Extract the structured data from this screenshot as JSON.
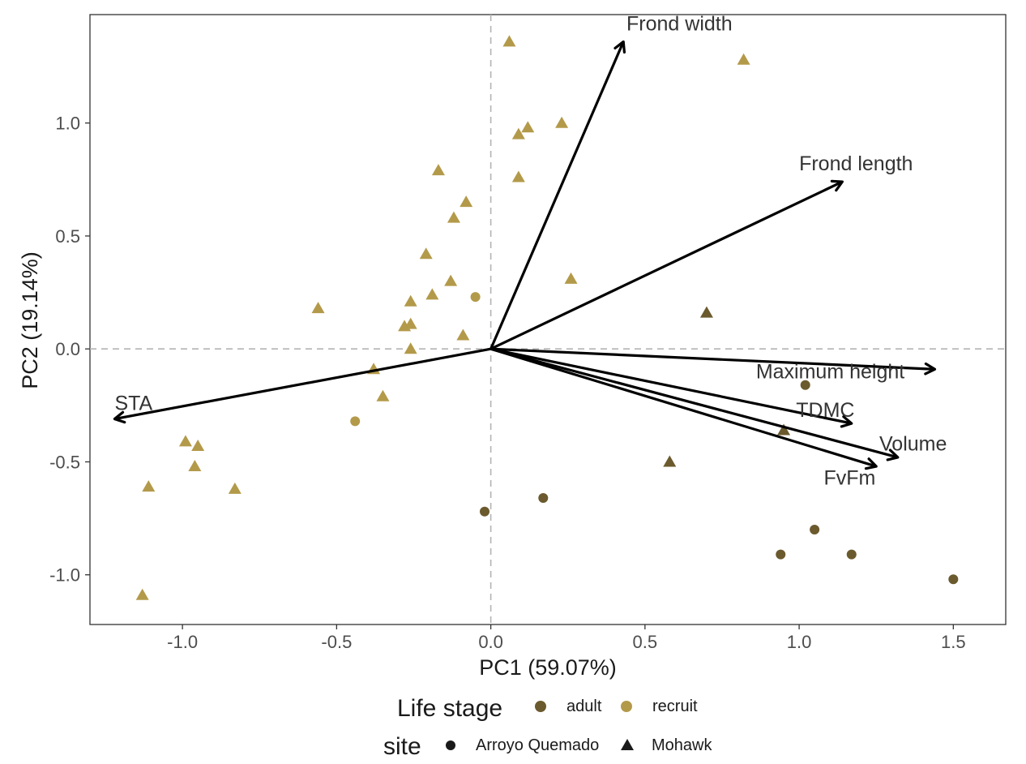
{
  "chart_data": {
    "type": "scatter",
    "subtype": "pca-biplot",
    "xlabel": "PC1 (59.07%)",
    "ylabel": "PC2 (19.14%)",
    "xlim": [
      -1.3,
      1.67
    ],
    "ylim": [
      -1.22,
      1.48
    ],
    "x_ticks": [
      {
        "value": -1.0,
        "label": "-1.0"
      },
      {
        "value": -0.5,
        "label": "-0.5"
      },
      {
        "value": 0.0,
        "label": "0.0"
      },
      {
        "value": 0.5,
        "label": "0.5"
      },
      {
        "value": 1.0,
        "label": "1.0"
      },
      {
        "value": 1.5,
        "label": "1.5"
      }
    ],
    "y_ticks": [
      {
        "value": 1.0,
        "label": "1.0"
      },
      {
        "value": 0.5,
        "label": "0.5"
      },
      {
        "value": 0.0,
        "label": "0.0"
      },
      {
        "value": -0.5,
        "label": "-0.5"
      },
      {
        "value": -1.0,
        "label": "-1.0"
      }
    ],
    "grid": false,
    "reference_lines": {
      "x": 0,
      "y": 0,
      "style": "dashed"
    },
    "colors": {
      "adult": "#6b5a2e",
      "recruit": "#b39a4a",
      "arrow": "#000000",
      "reference": "#b3b3b3"
    },
    "loadings": [
      {
        "name": "Frond width",
        "x": 0.43,
        "y": 1.36,
        "label_x": 0.44,
        "label_y": 1.41
      },
      {
        "name": "Frond length",
        "x": 1.14,
        "y": 0.74,
        "label_x": 1.0,
        "label_y": 0.79
      },
      {
        "name": "Maximum height",
        "x": 1.44,
        "y": -0.09,
        "label_x": 0.86,
        "label_y": -0.13
      },
      {
        "name": "TDMC",
        "x": 1.17,
        "y": -0.33,
        "label_x": 0.99,
        "label_y": -0.3
      },
      {
        "name": "Volume",
        "x": 1.32,
        "y": -0.48,
        "label_x": 1.26,
        "label_y": -0.45
      },
      {
        "name": "FvFm",
        "x": 1.25,
        "y": -0.52,
        "label_x": 1.08,
        "label_y": -0.6
      },
      {
        "name": "STA",
        "x": -1.22,
        "y": -0.31,
        "label_x": -1.22,
        "label_y": -0.27
      }
    ],
    "points": [
      {
        "x": 0.06,
        "y": 1.36,
        "life_stage": "recruit",
        "site": "Mohawk"
      },
      {
        "x": 0.82,
        "y": 1.28,
        "life_stage": "recruit",
        "site": "Mohawk"
      },
      {
        "x": 0.23,
        "y": 1.0,
        "life_stage": "recruit",
        "site": "Mohawk"
      },
      {
        "x": 0.12,
        "y": 0.98,
        "life_stage": "recruit",
        "site": "Mohawk"
      },
      {
        "x": 0.09,
        "y": 0.95,
        "life_stage": "recruit",
        "site": "Mohawk"
      },
      {
        "x": -0.17,
        "y": 0.79,
        "life_stage": "recruit",
        "site": "Mohawk"
      },
      {
        "x": 0.09,
        "y": 0.76,
        "life_stage": "recruit",
        "site": "Mohawk"
      },
      {
        "x": -0.08,
        "y": 0.65,
        "life_stage": "recruit",
        "site": "Mohawk"
      },
      {
        "x": -0.12,
        "y": 0.58,
        "life_stage": "recruit",
        "site": "Mohawk"
      },
      {
        "x": -0.21,
        "y": 0.42,
        "life_stage": "recruit",
        "site": "Mohawk"
      },
      {
        "x": 0.26,
        "y": 0.31,
        "life_stage": "recruit",
        "site": "Mohawk"
      },
      {
        "x": -0.13,
        "y": 0.3,
        "life_stage": "recruit",
        "site": "Mohawk"
      },
      {
        "x": -0.19,
        "y": 0.24,
        "life_stage": "recruit",
        "site": "Mohawk"
      },
      {
        "x": -0.26,
        "y": 0.21,
        "life_stage": "recruit",
        "site": "Mohawk"
      },
      {
        "x": -0.56,
        "y": 0.18,
        "life_stage": "recruit",
        "site": "Mohawk"
      },
      {
        "x": -0.26,
        "y": 0.11,
        "life_stage": "recruit",
        "site": "Mohawk"
      },
      {
        "x": -0.28,
        "y": 0.1,
        "life_stage": "recruit",
        "site": "Mohawk"
      },
      {
        "x": -0.09,
        "y": 0.06,
        "life_stage": "recruit",
        "site": "Mohawk"
      },
      {
        "x": -0.26,
        "y": 0.0,
        "life_stage": "recruit",
        "site": "Mohawk"
      },
      {
        "x": -0.38,
        "y": -0.09,
        "life_stage": "recruit",
        "site": "Mohawk"
      },
      {
        "x": -0.35,
        "y": -0.21,
        "life_stage": "recruit",
        "site": "Mohawk"
      },
      {
        "x": -0.99,
        "y": -0.41,
        "life_stage": "recruit",
        "site": "Mohawk"
      },
      {
        "x": -0.95,
        "y": -0.43,
        "life_stage": "recruit",
        "site": "Mohawk"
      },
      {
        "x": -0.96,
        "y": -0.52,
        "life_stage": "recruit",
        "site": "Mohawk"
      },
      {
        "x": -1.11,
        "y": -0.61,
        "life_stage": "recruit",
        "site": "Mohawk"
      },
      {
        "x": -0.83,
        "y": -0.62,
        "life_stage": "recruit",
        "site": "Mohawk"
      },
      {
        "x": -1.13,
        "y": -1.09,
        "life_stage": "recruit",
        "site": "Mohawk"
      },
      {
        "x": -0.05,
        "y": 0.23,
        "life_stage": "recruit",
        "site": "Arroyo Quemado"
      },
      {
        "x": -0.44,
        "y": -0.32,
        "life_stage": "recruit",
        "site": "Arroyo Quemado"
      },
      {
        "x": 0.7,
        "y": 0.16,
        "life_stage": "adult",
        "site": "Mohawk"
      },
      {
        "x": 0.95,
        "y": -0.36,
        "life_stage": "adult",
        "site": "Mohawk"
      },
      {
        "x": 0.58,
        "y": -0.5,
        "life_stage": "adult",
        "site": "Mohawk"
      },
      {
        "x": 1.02,
        "y": -0.16,
        "life_stage": "adult",
        "site": "Arroyo Quemado"
      },
      {
        "x": 0.17,
        "y": -0.66,
        "life_stage": "adult",
        "site": "Arroyo Quemado"
      },
      {
        "x": -0.02,
        "y": -0.72,
        "life_stage": "adult",
        "site": "Arroyo Quemado"
      },
      {
        "x": 1.05,
        "y": -0.8,
        "life_stage": "adult",
        "site": "Arroyo Quemado"
      },
      {
        "x": 0.94,
        "y": -0.91,
        "life_stage": "adult",
        "site": "Arroyo Quemado"
      },
      {
        "x": 1.17,
        "y": -0.91,
        "life_stage": "adult",
        "site": "Arroyo Quemado"
      },
      {
        "x": 1.5,
        "y": -1.02,
        "life_stage": "adult",
        "site": "Arroyo Quemado"
      }
    ],
    "legend": {
      "placement": "bottom",
      "life_stage": {
        "title": "Life stage",
        "items": [
          "adult",
          "recruit"
        ]
      },
      "site": {
        "title": "site",
        "items": [
          "Arroyo Quemado",
          "Mohawk"
        ]
      }
    }
  }
}
